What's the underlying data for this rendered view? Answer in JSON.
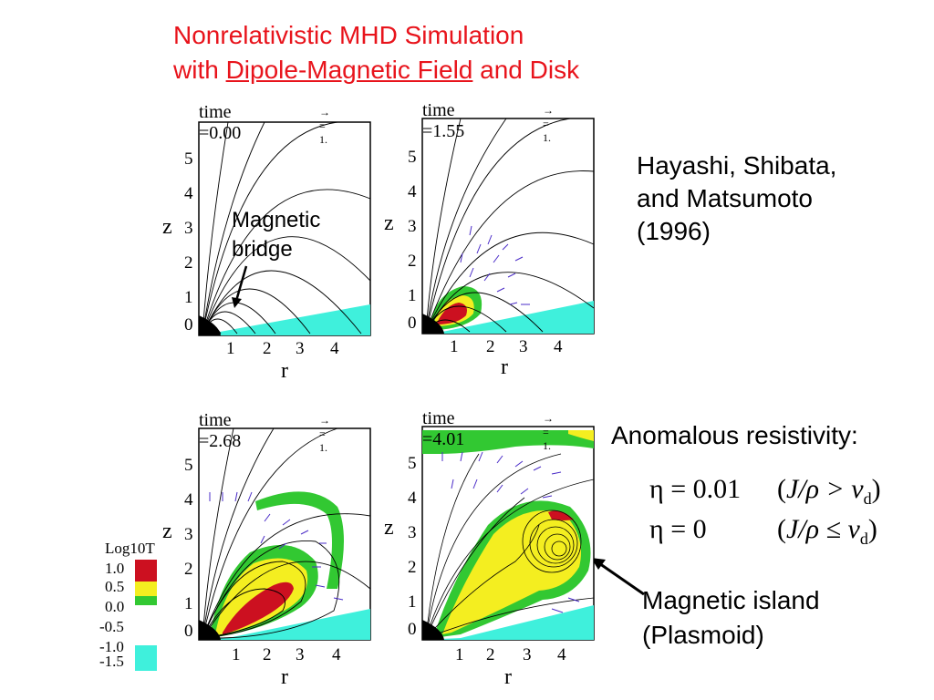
{
  "title": {
    "line1": "Nonrelativistic MHD Simulation",
    "line2_pre": "with ",
    "line2_underlined": "Dipole-Magnetic Field",
    "line2_post": " and Disk"
  },
  "citation": {
    "line1": "Hayashi, Shibata,",
    "line2": "and Matsumoto",
    "line3": "(1996)"
  },
  "anomalous": {
    "heading": "Anomalous resistivity:",
    "eq1": {
      "lhs": "η = 0.01",
      "cond_open": "(",
      "cond": "J/ρ > v",
      "cond_sub": "d",
      "cond_close": ")"
    },
    "eq2": {
      "lhs": "η = 0",
      "cond_open": "(",
      "cond": "J/ρ ≤ v",
      "cond_sub": "d",
      "cond_close": ")"
    }
  },
  "annotations": {
    "magnetic_bridge": {
      "line1": "Magnetic",
      "line2": "bridge"
    },
    "magnetic_island": {
      "line1": "Magnetic island",
      "line2": "(Plasmoid)"
    }
  },
  "panels": [
    {
      "time": "time =0.00",
      "vec": "= 1."
    },
    {
      "time": "time =1.55",
      "vec": "= 1."
    },
    {
      "time": "time =2.68",
      "vec": "= 1."
    },
    {
      "time": "time =4.01",
      "vec": "= 1."
    }
  ],
  "axes": {
    "zlabel": "z",
    "rlabel": "r",
    "zticks": [
      "0",
      "1",
      "2",
      "3",
      "4",
      "5"
    ],
    "rticks": [
      "1",
      "2",
      "3",
      "4"
    ]
  },
  "colorbar": {
    "title": "Log10T",
    "labels": [
      "1.0",
      "0.5",
      "0.0",
      "-0.5",
      "-1.0",
      "-1.5"
    ]
  },
  "colors": {
    "title_red": "#e8141c",
    "hot": "#cc1020",
    "warm": "#f4ee20",
    "mid": "#32c832",
    "disk": "#3ff0dc",
    "vector": "#4a2cc8"
  }
}
